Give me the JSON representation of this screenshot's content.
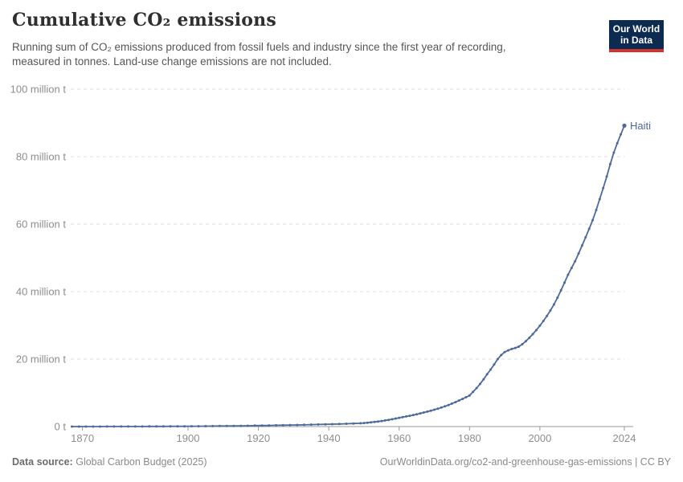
{
  "header": {
    "title": "Cumulative CO₂ emissions",
    "subtitle_line1": "Running sum of CO₂ emissions produced from fossil fuels and industry since the first year of recording,",
    "subtitle_line2": "measured in tonnes. Land-use change emissions are not included.",
    "logo_line1": "Our World",
    "logo_line2": "in Data",
    "logo_bg_color": "#0d2a50",
    "logo_accent_color": "#d0342c"
  },
  "footer": {
    "data_source_label": "Data source:",
    "data_source_value": "Global Carbon Budget (2025)",
    "attribution": "OurWorldinData.org/co2-and-greenhouse-gas-emissions | CC BY"
  },
  "chart_data": {
    "type": "line",
    "title": "Cumulative CO₂ emissions",
    "unit": "tonnes",
    "grid": true,
    "xlim": [
      1867,
      2024
    ],
    "ylim": [
      0,
      100000000
    ],
    "x_ticks": [
      1870,
      1900,
      1920,
      1940,
      1960,
      1980,
      2000,
      2024
    ],
    "y_ticks": [
      {
        "value": 0,
        "label": "0 t"
      },
      {
        "value": 20,
        "label": "20 million t"
      },
      {
        "value": 40,
        "label": "40 million t"
      },
      {
        "value": 60,
        "label": "60 million t"
      },
      {
        "value": 80,
        "label": "80 million t"
      },
      {
        "value": 100,
        "label": "100 million t"
      }
    ],
    "colors": {
      "grid": "#dddddd",
      "axis": "#999999",
      "tick_text": "#8e8e8e"
    },
    "series": [
      {
        "name": "Haiti",
        "color": "#4c6a9c",
        "end_label": "Haiti",
        "points_unit_millions": true,
        "points": [
          [
            1867,
            0.001
          ],
          [
            1869,
            0.002
          ],
          [
            1871,
            0.004
          ],
          [
            1873,
            0.006
          ],
          [
            1875,
            0.009
          ],
          [
            1877,
            0.012
          ],
          [
            1879,
            0.015
          ],
          [
            1881,
            0.019
          ],
          [
            1883,
            0.023
          ],
          [
            1885,
            0.028
          ],
          [
            1887,
            0.033
          ],
          [
            1889,
            0.039
          ],
          [
            1891,
            0.046
          ],
          [
            1893,
            0.053
          ],
          [
            1895,
            0.061
          ],
          [
            1897,
            0.07
          ],
          [
            1899,
            0.08
          ],
          [
            1901,
            0.092
          ],
          [
            1903,
            0.105
          ],
          [
            1905,
            0.12
          ],
          [
            1907,
            0.137
          ],
          [
            1909,
            0.156
          ],
          [
            1911,
            0.177
          ],
          [
            1913,
            0.2
          ],
          [
            1915,
            0.224
          ],
          [
            1917,
            0.25
          ],
          [
            1919,
            0.278
          ],
          [
            1921,
            0.308
          ],
          [
            1923,
            0.34
          ],
          [
            1925,
            0.374
          ],
          [
            1927,
            0.41
          ],
          [
            1929,
            0.448
          ],
          [
            1931,
            0.488
          ],
          [
            1933,
            0.53
          ],
          [
            1935,
            0.574
          ],
          [
            1937,
            0.62
          ],
          [
            1939,
            0.668
          ],
          [
            1941,
            0.718
          ],
          [
            1943,
            0.77
          ],
          [
            1945,
            0.824
          ],
          [
            1947,
            0.9
          ],
          [
            1949,
            0.98
          ],
          [
            1950,
            1.05
          ],
          [
            1951,
            1.15
          ],
          [
            1952,
            1.26
          ],
          [
            1953,
            1.38
          ],
          [
            1954,
            1.51
          ],
          [
            1955,
            1.65
          ],
          [
            1956,
            1.81
          ],
          [
            1957,
            1.98
          ],
          [
            1958,
            2.17
          ],
          [
            1959,
            2.38
          ],
          [
            1960,
            2.6
          ],
          [
            1961,
            2.8
          ],
          [
            1962,
            3.0
          ],
          [
            1963,
            3.2
          ],
          [
            1964,
            3.42
          ],
          [
            1965,
            3.65
          ],
          [
            1966,
            3.9
          ],
          [
            1967,
            4.16
          ],
          [
            1968,
            4.43
          ],
          [
            1969,
            4.71
          ],
          [
            1970,
            5.0
          ],
          [
            1971,
            5.31
          ],
          [
            1972,
            5.64
          ],
          [
            1973,
            6.0
          ],
          [
            1974,
            6.38
          ],
          [
            1975,
            6.8
          ],
          [
            1976,
            7.25
          ],
          [
            1977,
            7.72
          ],
          [
            1978,
            8.2
          ],
          [
            1979,
            8.7
          ],
          [
            1980,
            9.2
          ],
          [
            1981,
            10.3
          ],
          [
            1982,
            11.4
          ],
          [
            1983,
            12.65
          ],
          [
            1984,
            14.0
          ],
          [
            1985,
            15.5
          ],
          [
            1986,
            16.9
          ],
          [
            1987,
            18.4
          ],
          [
            1988,
            20.0
          ],
          [
            1989,
            21.2
          ],
          [
            1990,
            22.1
          ],
          [
            1991,
            22.6
          ],
          [
            1992,
            23.0
          ],
          [
            1993,
            23.3
          ],
          [
            1994,
            23.7
          ],
          [
            1995,
            24.4
          ],
          [
            1996,
            25.3
          ],
          [
            1997,
            26.3
          ],
          [
            1998,
            27.4
          ],
          [
            1999,
            28.6
          ],
          [
            2000,
            29.9
          ],
          [
            2001,
            31.3
          ],
          [
            2002,
            32.8
          ],
          [
            2003,
            34.4
          ],
          [
            2004,
            36.2
          ],
          [
            2005,
            38.2
          ],
          [
            2006,
            40.4
          ],
          [
            2007,
            42.7
          ],
          [
            2008,
            45.0
          ],
          [
            2009,
            47.0
          ],
          [
            2010,
            49.0
          ],
          [
            2011,
            51.3
          ],
          [
            2012,
            53.7
          ],
          [
            2013,
            56.1
          ],
          [
            2014,
            58.6
          ],
          [
            2015,
            61.2
          ],
          [
            2016,
            64.2
          ],
          [
            2017,
            67.4
          ],
          [
            2018,
            70.7
          ],
          [
            2019,
            74.1
          ],
          [
            2020,
            77.8
          ],
          [
            2021,
            81.2
          ],
          [
            2022,
            84.0
          ],
          [
            2023,
            86.6
          ],
          [
            2024,
            89.2
          ]
        ]
      }
    ],
    "legend_position": "end-of-line"
  }
}
